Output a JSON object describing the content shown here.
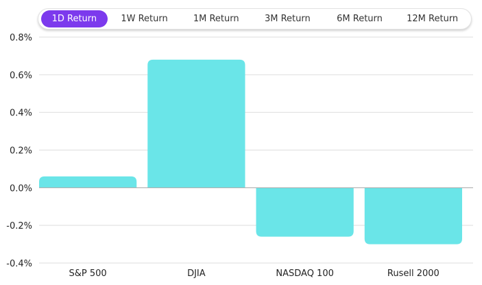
{
  "tabs": [
    {
      "label": "1D Return",
      "active": true
    },
    {
      "label": "1W Return",
      "active": false
    },
    {
      "label": "1M Return",
      "active": false
    },
    {
      "label": "3M Return",
      "active": false
    },
    {
      "label": "6M Return",
      "active": false
    },
    {
      "label": "12M Return",
      "active": false
    }
  ],
  "chart_data": {
    "type": "bar",
    "title": "",
    "xlabel": "",
    "ylabel": "",
    "categories": [
      "S&P 500",
      "DJIA",
      "NASDAQ 100",
      "Rusell 2000"
    ],
    "values": [
      0.06,
      0.68,
      -0.26,
      -0.3
    ],
    "ylim": [
      -0.4,
      0.8
    ],
    "yticks": [
      0.8,
      0.6,
      0.4,
      0.2,
      0.0,
      -0.2,
      -0.4
    ],
    "ytick_labels": [
      "0.8%",
      "0.6%",
      "0.4%",
      "0.2%",
      "0.0%",
      "-0.2%",
      "-0.4%"
    ],
    "bar_color": "#6ae5e8",
    "grid": true,
    "legend": "none"
  },
  "colors": {
    "accent": "#7c3aed",
    "bar": "#6ae5e8",
    "grid": "#dddddd"
  }
}
